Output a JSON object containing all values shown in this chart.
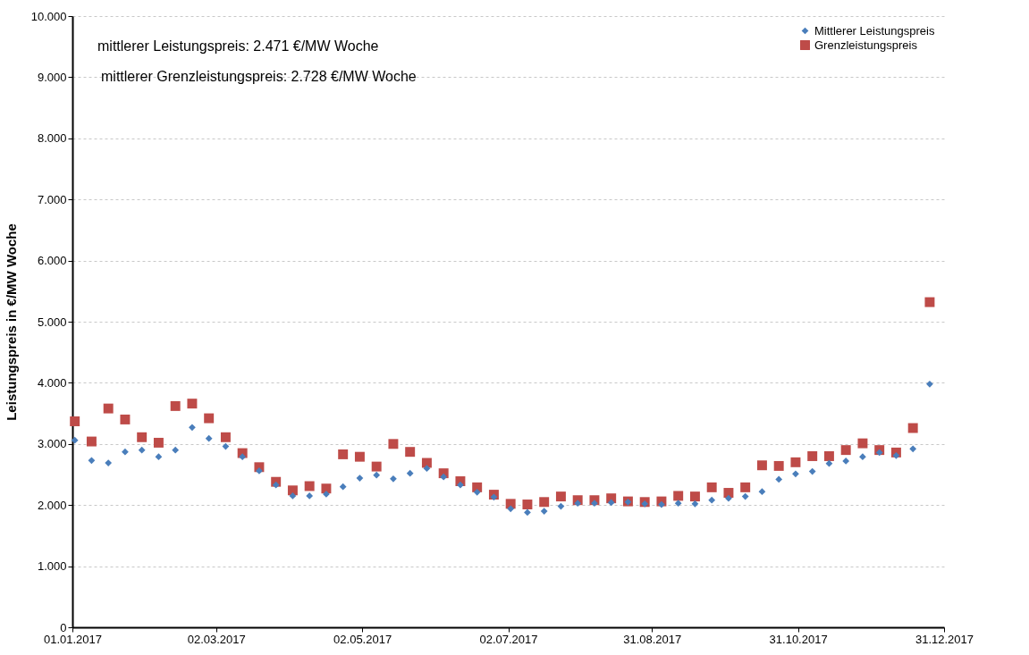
{
  "chart_data": {
    "type": "scatter",
    "ylabel": "Leistungspreis in €/MW Woche",
    "annotations": [
      "mittlerer Leistungspreis: 2.471 €/MW Woche",
      "mittlerer Grenzleistungspreis: 2.728 €/MW Woche"
    ],
    "x": [
      "2017-01-02",
      "2017-01-09",
      "2017-01-16",
      "2017-01-23",
      "2017-01-30",
      "2017-02-06",
      "2017-02-13",
      "2017-02-20",
      "2017-02-27",
      "2017-03-06",
      "2017-03-13",
      "2017-03-20",
      "2017-03-27",
      "2017-04-03",
      "2017-04-10",
      "2017-04-17",
      "2017-04-24",
      "2017-05-01",
      "2017-05-08",
      "2017-05-15",
      "2017-05-22",
      "2017-05-29",
      "2017-06-05",
      "2017-06-12",
      "2017-06-19",
      "2017-06-26",
      "2017-07-03",
      "2017-07-10",
      "2017-07-17",
      "2017-07-24",
      "2017-07-31",
      "2017-08-07",
      "2017-08-14",
      "2017-08-21",
      "2017-08-28",
      "2017-09-04",
      "2017-09-11",
      "2017-09-18",
      "2017-09-25",
      "2017-10-02",
      "2017-10-09",
      "2017-10-16",
      "2017-10-23",
      "2017-10-30",
      "2017-11-06",
      "2017-11-13",
      "2017-11-20",
      "2017-11-27",
      "2017-12-04",
      "2017-12-11",
      "2017-12-18",
      "2017-12-25"
    ],
    "series": [
      {
        "name": "Mittlerer Leistungspreis",
        "color": "#4a7ebb",
        "marker": "diamond",
        "values": [
          3060,
          2730,
          2690,
          2870,
          2900,
          2790,
          2900,
          3270,
          3090,
          2960,
          2790,
          2560,
          2330,
          2150,
          2150,
          2180,
          2300,
          2440,
          2490,
          2430,
          2520,
          2600,
          2460,
          2330,
          2210,
          2130,
          1940,
          1880,
          1900,
          1980,
          2030,
          2030,
          2040,
          2050,
          2020,
          2010,
          2030,
          2020,
          2080,
          2110,
          2140,
          2220,
          2420,
          2510,
          2550,
          2680,
          2720,
          2790,
          2860,
          2810,
          2920,
          3980
        ]
      },
      {
        "name": "Grenzleistungspreis",
        "color": "#be4b48",
        "marker": "square",
        "values": [
          3370,
          3040,
          3580,
          3400,
          3110,
          3020,
          3620,
          3660,
          3420,
          3110,
          2850,
          2620,
          2380,
          2240,
          2310,
          2270,
          2830,
          2790,
          2630,
          3000,
          2870,
          2690,
          2520,
          2390,
          2290,
          2170,
          2020,
          2010,
          2050,
          2140,
          2080,
          2080,
          2110,
          2060,
          2050,
          2060,
          2150,
          2140,
          2290,
          2200,
          2290,
          2650,
          2640,
          2700,
          2800,
          2800,
          2900,
          3010,
          2900,
          2860,
          3260,
          5320
        ]
      }
    ],
    "xlim": [
      "2017-01-01",
      "2017-12-31"
    ],
    "xticks": [
      {
        "value": "2017-01-01",
        "label": "01.01.2017"
      },
      {
        "value": "2017-03-02",
        "label": "02.03.2017"
      },
      {
        "value": "2017-05-02",
        "label": "02.05.2017"
      },
      {
        "value": "2017-07-02",
        "label": "02.07.2017"
      },
      {
        "value": "2017-08-31",
        "label": "31.08.2017"
      },
      {
        "value": "2017-10-31",
        "label": "31.10.2017"
      },
      {
        "value": "2017-12-31",
        "label": "31.12.2017"
      }
    ],
    "ylim": [
      0,
      10000
    ],
    "yticks": [
      {
        "value": 0,
        "label": "0"
      },
      {
        "value": 1000,
        "label": "1.000"
      },
      {
        "value": 2000,
        "label": "2.000"
      },
      {
        "value": 3000,
        "label": "3.000"
      },
      {
        "value": 4000,
        "label": "4.000"
      },
      {
        "value": 5000,
        "label": "5.000"
      },
      {
        "value": 6000,
        "label": "6.000"
      },
      {
        "value": 7000,
        "label": "7.000"
      },
      {
        "value": 8000,
        "label": "8.000"
      },
      {
        "value": 9000,
        "label": "9.000"
      },
      {
        "value": 10000,
        "label": "10.000"
      }
    ],
    "grid": "y",
    "legend": "top right"
  }
}
